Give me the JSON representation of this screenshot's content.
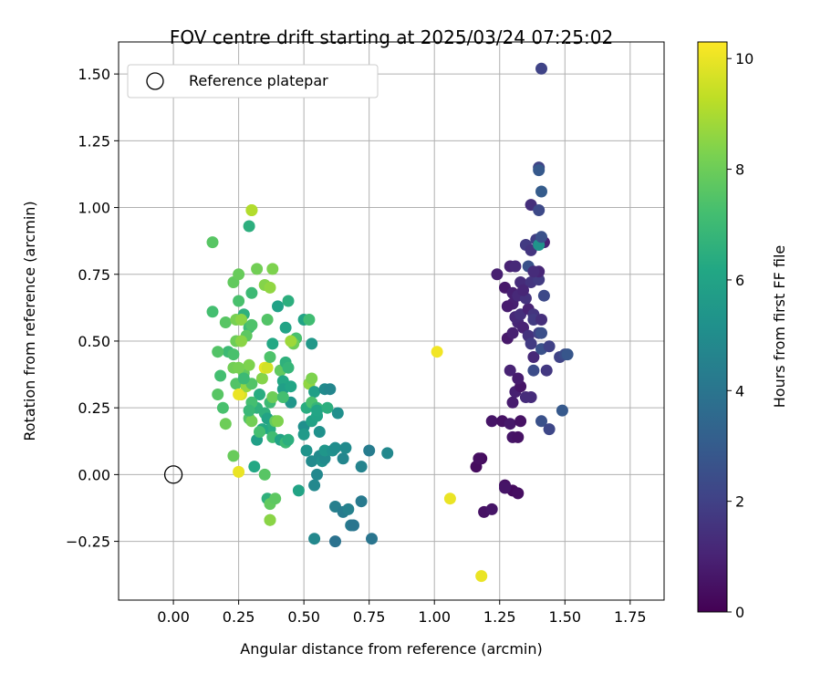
{
  "chart_data": {
    "type": "scatter",
    "title": "FOV centre drift starting at 2025/03/24 07:25:02",
    "xlabel": "Angular distance from reference (arcmin)",
    "ylabel": "Rotation from reference (arcmin)",
    "xlim": [
      -0.21,
      1.88
    ],
    "ylim": [
      -0.47,
      1.62
    ],
    "xticks": [
      0.0,
      0.25,
      0.5,
      0.75,
      1.0,
      1.25,
      1.5,
      1.75
    ],
    "xtick_labels": [
      "0.00",
      "0.25",
      "0.50",
      "0.75",
      "1.00",
      "1.25",
      "1.50",
      "1.75"
    ],
    "yticks": [
      -0.25,
      0.0,
      0.25,
      0.5,
      0.75,
      1.0,
      1.25,
      1.5
    ],
    "ytick_labels": [
      "−0.25",
      "0.00",
      "0.25",
      "0.50",
      "0.75",
      "1.00",
      "1.25",
      "1.50"
    ],
    "grid": true,
    "legend": {
      "position": "top-left",
      "entries": [
        "Reference platepar"
      ]
    },
    "reference_point": {
      "x": 0.0,
      "y": 0.0
    },
    "colorbar": {
      "label": "Hours from first FF file",
      "colormap": "viridis",
      "min": 0,
      "max": 10.3,
      "ticks": [
        0,
        2,
        4,
        6,
        8,
        10
      ],
      "tick_labels": [
        "0",
        "2",
        "4",
        "6",
        "8",
        "10"
      ]
    },
    "points": [
      [
        1.16,
        0.03,
        0.3
      ],
      [
        1.18,
        0.06,
        0.3
      ],
      [
        1.17,
        0.06,
        0.4
      ],
      [
        1.19,
        -0.14,
        0.5
      ],
      [
        1.22,
        -0.13,
        0.6
      ],
      [
        1.27,
        -0.04,
        0.5
      ],
      [
        1.3,
        -0.06,
        0.3
      ],
      [
        1.32,
        -0.07,
        0.4
      ],
      [
        1.27,
        -0.05,
        0.6
      ],
      [
        1.22,
        0.2,
        0.6
      ],
      [
        1.26,
        0.2,
        0.5
      ],
      [
        1.29,
        0.19,
        0.7
      ],
      [
        1.3,
        0.14,
        0.6
      ],
      [
        1.32,
        0.14,
        0.5
      ],
      [
        1.33,
        0.2,
        0.5
      ],
      [
        1.3,
        0.27,
        0.8
      ],
      [
        1.31,
        0.31,
        0.9
      ],
      [
        1.33,
        0.33,
        0.6
      ],
      [
        1.29,
        0.39,
        1.0
      ],
      [
        1.32,
        0.36,
        0.8
      ],
      [
        1.35,
        0.29,
        1.3
      ],
      [
        1.28,
        0.51,
        0.7
      ],
      [
        1.3,
        0.53,
        0.9
      ],
      [
        1.32,
        0.57,
        1.1
      ],
      [
        1.34,
        0.55,
        1.0
      ],
      [
        1.31,
        0.59,
        1.2
      ],
      [
        1.3,
        0.64,
        0.9
      ],
      [
        1.33,
        0.6,
        1.4
      ],
      [
        1.36,
        0.62,
        1.0
      ],
      [
        1.38,
        0.6,
        1.6
      ],
      [
        1.28,
        0.63,
        0.8
      ],
      [
        1.27,
        0.7,
        0.7
      ],
      [
        1.3,
        0.68,
        0.9
      ],
      [
        1.32,
        0.67,
        1.2
      ],
      [
        1.35,
        0.66,
        1.5
      ],
      [
        1.24,
        0.75,
        0.9
      ],
      [
        1.29,
        0.78,
        1.0
      ],
      [
        1.31,
        0.78,
        1.2
      ],
      [
        1.33,
        0.72,
        1.3
      ],
      [
        1.37,
        0.72,
        1.6
      ],
      [
        1.4,
        0.73,
        1.8
      ],
      [
        1.42,
        0.67,
        2.3
      ],
      [
        1.36,
        0.78,
        2.6
      ],
      [
        1.4,
        0.76,
        1.1
      ],
      [
        1.36,
        0.52,
        1.5
      ],
      [
        1.37,
        0.49,
        1.8
      ],
      [
        1.4,
        0.53,
        2.0
      ],
      [
        1.41,
        0.53,
        2.5
      ],
      [
        1.38,
        0.44,
        1.2
      ],
      [
        1.38,
        0.39,
        2.4
      ],
      [
        1.41,
        0.47,
        2.6
      ],
      [
        1.43,
        0.39,
        1.7
      ],
      [
        1.44,
        0.48,
        2.0
      ],
      [
        1.48,
        0.44,
        2.1
      ],
      [
        1.5,
        0.45,
        2.4
      ],
      [
        1.51,
        0.45,
        2.8
      ],
      [
        1.49,
        0.24,
        2.9
      ],
      [
        1.41,
        0.2,
        2.6
      ],
      [
        1.44,
        0.17,
        2.2
      ],
      [
        1.37,
        0.29,
        1.3
      ],
      [
        1.35,
        0.86,
        1.8
      ],
      [
        1.37,
        0.84,
        1.6
      ],
      [
        1.39,
        0.88,
        1.9
      ],
      [
        1.41,
        0.87,
        1.4
      ],
      [
        1.42,
        0.87,
        1.0
      ],
      [
        1.4,
        0.86,
        5.3
      ],
      [
        1.41,
        0.89,
        2.6
      ],
      [
        1.37,
        1.01,
        1.4
      ],
      [
        1.4,
        0.99,
        2.3
      ],
      [
        1.41,
        1.06,
        3.0
      ],
      [
        1.4,
        1.15,
        2.1
      ],
      [
        1.4,
        1.14,
        2.9
      ],
      [
        1.41,
        1.52,
        2.1
      ],
      [
        1.38,
        0.58,
        1.8
      ],
      [
        1.41,
        0.58,
        1.4
      ],
      [
        1.34,
        0.69,
        1.1
      ],
      [
        1.38,
        0.76,
        1.3
      ],
      [
        0.15,
        0.87,
        7.6
      ],
      [
        0.29,
        0.93,
        6.5
      ],
      [
        0.3,
        0.99,
        8.9
      ],
      [
        0.3,
        0.99,
        9.1
      ],
      [
        0.15,
        0.61,
        7.2
      ],
      [
        0.2,
        0.57,
        7.6
      ],
      [
        0.23,
        0.72,
        7.8
      ],
      [
        0.25,
        0.75,
        7.9
      ],
      [
        0.32,
        0.77,
        8.1
      ],
      [
        0.38,
        0.77,
        8.3
      ],
      [
        0.35,
        0.71,
        8.4
      ],
      [
        0.37,
        0.7,
        8.6
      ],
      [
        0.3,
        0.68,
        7.0
      ],
      [
        0.25,
        0.65,
        7.3
      ],
      [
        0.24,
        0.58,
        8.2
      ],
      [
        0.27,
        0.6,
        6.6
      ],
      [
        0.26,
        0.58,
        8.5
      ],
      [
        0.29,
        0.55,
        7.0
      ],
      [
        0.4,
        0.63,
        5.9
      ],
      [
        0.44,
        0.65,
        6.5
      ],
      [
        0.5,
        0.58,
        6.0
      ],
      [
        0.52,
        0.58,
        7.1
      ],
      [
        0.43,
        0.55,
        6.0
      ],
      [
        0.47,
        0.51,
        7.3
      ],
      [
        0.46,
        0.49,
        8.0
      ],
      [
        0.45,
        0.5,
        8.8
      ],
      [
        0.53,
        0.49,
        5.5
      ],
      [
        0.36,
        0.58,
        7.5
      ],
      [
        0.3,
        0.56,
        7.4
      ],
      [
        0.28,
        0.52,
        7.7
      ],
      [
        0.24,
        0.5,
        8.0
      ],
      [
        0.26,
        0.5,
        8.5
      ],
      [
        0.21,
        0.46,
        7.0
      ],
      [
        0.23,
        0.45,
        7.3
      ],
      [
        0.17,
        0.46,
        7.5
      ],
      [
        0.18,
        0.37,
        7.2
      ],
      [
        0.17,
        0.3,
        7.6
      ],
      [
        0.19,
        0.25,
        7.3
      ],
      [
        0.2,
        0.19,
        8.0
      ],
      [
        0.23,
        0.07,
        7.9
      ],
      [
        0.23,
        0.4,
        8.1
      ],
      [
        0.24,
        0.34,
        7.5
      ],
      [
        0.26,
        0.3,
        9.7
      ],
      [
        0.27,
        0.38,
        7.8
      ],
      [
        0.29,
        0.41,
        8.3
      ],
      [
        0.28,
        0.33,
        8.6
      ],
      [
        0.29,
        0.21,
        7.5
      ],
      [
        0.3,
        0.2,
        8.1
      ],
      [
        0.31,
        0.03,
        6.2
      ],
      [
        0.35,
        0.0,
        7.6
      ],
      [
        0.36,
        -0.09,
        6.6
      ],
      [
        0.37,
        -0.11,
        7.8
      ],
      [
        0.37,
        -0.17,
        8.0
      ],
      [
        0.37,
        -0.17,
        8.5
      ],
      [
        0.39,
        -0.09,
        7.7
      ],
      [
        0.33,
        0.3,
        6.4
      ],
      [
        0.34,
        0.36,
        8.4
      ],
      [
        0.35,
        0.4,
        9.9
      ],
      [
        0.36,
        0.4,
        9.6
      ],
      [
        0.37,
        0.44,
        7.4
      ],
      [
        0.38,
        0.49,
        6.2
      ],
      [
        0.35,
        0.23,
        6.6
      ],
      [
        0.37,
        0.27,
        7.0
      ],
      [
        0.38,
        0.29,
        8.0
      ],
      [
        0.36,
        0.21,
        6.0
      ],
      [
        0.37,
        0.17,
        6.4
      ],
      [
        0.38,
        0.14,
        7.1
      ],
      [
        0.39,
        0.2,
        7.9
      ],
      [
        0.4,
        0.2,
        8.3
      ],
      [
        0.41,
        0.39,
        5.9
      ],
      [
        0.41,
        0.39,
        7.8
      ],
      [
        0.42,
        0.35,
        6.2
      ],
      [
        0.42,
        0.32,
        5.8
      ],
      [
        0.43,
        0.42,
        6.6
      ],
      [
        0.44,
        0.4,
        6.8
      ],
      [
        0.45,
        0.33,
        6.1
      ],
      [
        0.45,
        0.27,
        5.4
      ],
      [
        0.41,
        0.13,
        6.0
      ],
      [
        0.43,
        0.12,
        7.0
      ],
      [
        0.44,
        0.13,
        6.5
      ],
      [
        0.42,
        0.29,
        7.2
      ],
      [
        0.32,
        0.25,
        6.6
      ],
      [
        0.32,
        0.13,
        5.8
      ],
      [
        0.34,
        0.17,
        6.2
      ],
      [
        0.33,
        0.16,
        7.2
      ],
      [
        0.3,
        0.27,
        7.2
      ],
      [
        0.29,
        0.24,
        6.9
      ],
      [
        0.3,
        0.34,
        7.5
      ],
      [
        0.27,
        0.36,
        7.0
      ],
      [
        0.25,
        0.4,
        8.2
      ],
      [
        0.25,
        0.3,
        10.0
      ],
      [
        0.25,
        0.01,
        10.0
      ],
      [
        0.48,
        -0.06,
        6.0
      ],
      [
        0.5,
        0.18,
        5.1
      ],
      [
        0.5,
        0.15,
        5.6
      ],
      [
        0.51,
        0.09,
        5.3
      ],
      [
        0.51,
        0.25,
        6.4
      ],
      [
        0.52,
        0.34,
        6.4
      ],
      [
        0.52,
        0.34,
        8.6
      ],
      [
        0.53,
        0.36,
        8.3
      ],
      [
        0.54,
        0.31,
        5.8
      ],
      [
        0.53,
        0.27,
        7.3
      ],
      [
        0.55,
        0.25,
        6.8
      ],
      [
        0.55,
        0.22,
        6.5
      ],
      [
        0.53,
        0.2,
        5.9
      ],
      [
        0.55,
        0.22,
        6.0
      ],
      [
        0.55,
        0.24,
        6.1
      ],
      [
        0.56,
        0.16,
        5.2
      ],
      [
        0.53,
        0.05,
        4.9
      ],
      [
        0.54,
        -0.04,
        4.8
      ],
      [
        0.55,
        0.0,
        4.8
      ],
      [
        0.56,
        0.07,
        4.9
      ],
      [
        0.57,
        0.05,
        5.2
      ],
      [
        0.58,
        0.06,
        4.9
      ],
      [
        0.58,
        0.09,
        5.4
      ],
      [
        0.59,
        0.25,
        6.5
      ],
      [
        0.58,
        0.32,
        4.9
      ],
      [
        0.6,
        0.32,
        4.7
      ],
      [
        0.61,
        0.09,
        5.2
      ],
      [
        0.62,
        0.1,
        5.0
      ],
      [
        0.63,
        0.23,
        5.1
      ],
      [
        0.65,
        0.06,
        4.7
      ],
      [
        0.66,
        0.1,
        4.9
      ],
      [
        0.62,
        -0.12,
        4.4
      ],
      [
        0.65,
        -0.14,
        4.3
      ],
      [
        0.67,
        -0.13,
        4.5
      ],
      [
        0.68,
        -0.19,
        4.2
      ],
      [
        0.69,
        -0.19,
        4.0
      ],
      [
        0.62,
        -0.25,
        3.9
      ],
      [
        0.54,
        -0.24,
        4.8
      ],
      [
        0.72,
        -0.1,
        4.2
      ],
      [
        0.72,
        0.03,
        4.6
      ],
      [
        0.75,
        0.09,
        4.3
      ],
      [
        0.82,
        0.08,
        4.8
      ],
      [
        0.76,
        -0.24,
        4.0
      ],
      [
        1.01,
        0.46,
        10.1
      ],
      [
        1.06,
        -0.09,
        10.0
      ],
      [
        1.18,
        -0.38,
        10.0
      ]
    ]
  }
}
